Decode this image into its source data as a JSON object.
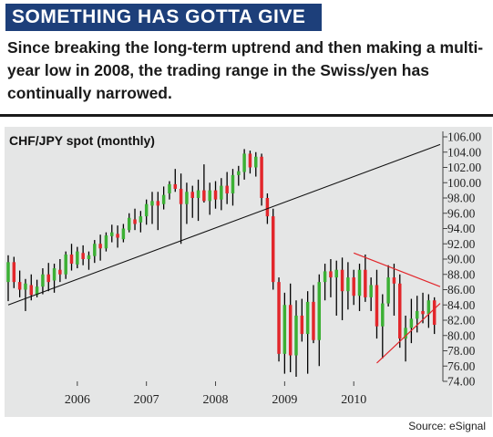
{
  "header": {
    "banner": "SOMETHING HAS GOTTA GIVE",
    "intro": "Since breaking the long-term uptrend and then making a multi-year low in 2008, the trading range in the Swiss/yen has continually narrowed."
  },
  "footer": {
    "source": "Source: eSignal"
  },
  "colors": {
    "banner": "#1d3f7a",
    "up": "#3bb034",
    "down": "#e2262b",
    "panel": "#e5e6e6",
    "triangle": "#e2262b"
  },
  "chart_data": {
    "type": "candlestick",
    "title": "CHF/JPY spot (monthly)",
    "ylim": [
      74,
      106
    ],
    "yticks": [
      "74.00",
      "76.00",
      "78.00",
      "80.00",
      "82.00",
      "84.00",
      "86.00",
      "88.00",
      "90.00",
      "92.00",
      "94.00",
      "96.00",
      "98.00",
      "100.00",
      "102.00",
      "104.00",
      "106.00"
    ],
    "xticks": [
      "2006",
      "2007",
      "2008",
      "2009",
      "2010"
    ],
    "xlim": [
      "2005-01",
      "2011-04"
    ],
    "candles": [
      {
        "t": "2005-01",
        "o": 87.0,
        "h": 90.5,
        "l": 84.5,
        "c": 89.6
      },
      {
        "t": "2005-02",
        "o": 89.6,
        "h": 90.3,
        "l": 86.2,
        "c": 87.0
      },
      {
        "t": "2005-03",
        "o": 87.0,
        "h": 88.5,
        "l": 85.0,
        "c": 86.0
      },
      {
        "t": "2005-04",
        "o": 86.0,
        "h": 87.4,
        "l": 83.2,
        "c": 86.8
      },
      {
        "t": "2005-05",
        "o": 86.6,
        "h": 88.0,
        "l": 84.6,
        "c": 85.3
      },
      {
        "t": "2005-06",
        "o": 85.3,
        "h": 87.3,
        "l": 85.0,
        "c": 86.4
      },
      {
        "t": "2005-07",
        "o": 86.4,
        "h": 88.8,
        "l": 85.4,
        "c": 88.0
      },
      {
        "t": "2005-08",
        "o": 88.0,
        "h": 89.5,
        "l": 85.8,
        "c": 87.0
      },
      {
        "t": "2005-09",
        "o": 87.2,
        "h": 89.4,
        "l": 85.6,
        "c": 88.8
      },
      {
        "t": "2005-10",
        "o": 88.6,
        "h": 90.0,
        "l": 87.0,
        "c": 88.0
      },
      {
        "t": "2005-11",
        "o": 88.0,
        "h": 91.0,
        "l": 87.4,
        "c": 90.6
      },
      {
        "t": "2005-12",
        "o": 90.6,
        "h": 92.0,
        "l": 88.5,
        "c": 89.4
      },
      {
        "t": "2006-01",
        "o": 89.3,
        "h": 91.6,
        "l": 88.8,
        "c": 91.0
      },
      {
        "t": "2006-02",
        "o": 90.8,
        "h": 91.8,
        "l": 89.2,
        "c": 90.0
      },
      {
        "t": "2006-03",
        "o": 90.0,
        "h": 91.0,
        "l": 88.6,
        "c": 90.5
      },
      {
        "t": "2006-04",
        "o": 90.4,
        "h": 92.5,
        "l": 89.5,
        "c": 92.0
      },
      {
        "t": "2006-05",
        "o": 92.0,
        "h": 93.2,
        "l": 89.8,
        "c": 91.4
      },
      {
        "t": "2006-06",
        "o": 91.4,
        "h": 93.5,
        "l": 91.0,
        "c": 93.1
      },
      {
        "t": "2006-07",
        "o": 93.0,
        "h": 94.5,
        "l": 92.2,
        "c": 93.5
      },
      {
        "t": "2006-08",
        "o": 93.3,
        "h": 94.4,
        "l": 91.5,
        "c": 92.8
      },
      {
        "t": "2006-09",
        "o": 92.6,
        "h": 94.6,
        "l": 92.2,
        "c": 94.0
      },
      {
        "t": "2006-10",
        "o": 93.8,
        "h": 96.0,
        "l": 93.5,
        "c": 95.4
      },
      {
        "t": "2006-11",
        "o": 95.2,
        "h": 96.6,
        "l": 93.8,
        "c": 94.6
      },
      {
        "t": "2006-12",
        "o": 94.8,
        "h": 96.3,
        "l": 93.5,
        "c": 95.6
      },
      {
        "t": "2007-01",
        "o": 95.6,
        "h": 97.8,
        "l": 94.5,
        "c": 97.2
      },
      {
        "t": "2007-02",
        "o": 97.0,
        "h": 98.8,
        "l": 94.6,
        "c": 97.6
      },
      {
        "t": "2007-03",
        "o": 97.6,
        "h": 98.8,
        "l": 93.8,
        "c": 97.0
      },
      {
        "t": "2007-04",
        "o": 97.2,
        "h": 99.5,
        "l": 96.5,
        "c": 98.4
      },
      {
        "t": "2007-05",
        "o": 98.6,
        "h": 100.2,
        "l": 97.8,
        "c": 99.8
      },
      {
        "t": "2007-06",
        "o": 99.8,
        "h": 101.8,
        "l": 98.8,
        "c": 99.2
      },
      {
        "t": "2007-07",
        "o": 99.2,
        "h": 101.2,
        "l": 92.0,
        "c": 97.2
      },
      {
        "t": "2007-08",
        "o": 97.2,
        "h": 100.0,
        "l": 94.6,
        "c": 98.8
      },
      {
        "t": "2007-09",
        "o": 98.8,
        "h": 99.6,
        "l": 95.4,
        "c": 98.0
      },
      {
        "t": "2007-10",
        "o": 98.0,
        "h": 100.4,
        "l": 95.0,
        "c": 99.0
      },
      {
        "t": "2007-11",
        "o": 99.0,
        "h": 102.4,
        "l": 97.4,
        "c": 97.6
      },
      {
        "t": "2007-12",
        "o": 97.6,
        "h": 100.0,
        "l": 95.8,
        "c": 99.0
      },
      {
        "t": "2008-01",
        "o": 99.0,
        "h": 100.2,
        "l": 96.6,
        "c": 97.8
      },
      {
        "t": "2008-02",
        "o": 97.8,
        "h": 100.6,
        "l": 96.4,
        "c": 99.6
      },
      {
        "t": "2008-03",
        "o": 99.6,
        "h": 101.4,
        "l": 97.2,
        "c": 98.6
      },
      {
        "t": "2008-04",
        "o": 98.6,
        "h": 101.8,
        "l": 97.0,
        "c": 101.0
      },
      {
        "t": "2008-05",
        "o": 101.0,
        "h": 102.2,
        "l": 99.6,
        "c": 101.5
      },
      {
        "t": "2008-06",
        "o": 101.4,
        "h": 104.4,
        "l": 100.4,
        "c": 103.8
      },
      {
        "t": "2008-07",
        "o": 103.8,
        "h": 104.2,
        "l": 101.2,
        "c": 102.0
      },
      {
        "t": "2008-08",
        "o": 102.0,
        "h": 104.0,
        "l": 100.8,
        "c": 103.4
      },
      {
        "t": "2008-09",
        "o": 103.4,
        "h": 103.8,
        "l": 97.0,
        "c": 98.0
      },
      {
        "t": "2008-10",
        "o": 98.0,
        "h": 98.6,
        "l": 94.6,
        "c": 95.6
      },
      {
        "t": "2008-11",
        "o": 95.6,
        "h": 96.6,
        "l": 86.0,
        "c": 87.0
      },
      {
        "t": "2008-12",
        "o": 87.0,
        "h": 87.6,
        "l": 76.6,
        "c": 77.6
      },
      {
        "t": "2009-01",
        "o": 77.6,
        "h": 85.6,
        "l": 75.0,
        "c": 84.0
      },
      {
        "t": "2009-02",
        "o": 84.0,
        "h": 86.8,
        "l": 75.2,
        "c": 77.4
      },
      {
        "t": "2009-03",
        "o": 77.4,
        "h": 84.6,
        "l": 74.6,
        "c": 82.6
      },
      {
        "t": "2009-04",
        "o": 82.6,
        "h": 84.8,
        "l": 79.2,
        "c": 80.2
      },
      {
        "t": "2009-05",
        "o": 80.2,
        "h": 85.8,
        "l": 75.0,
        "c": 84.4
      },
      {
        "t": "2009-06",
        "o": 84.4,
        "h": 86.6,
        "l": 79.0,
        "c": 79.4
      },
      {
        "t": "2009-07",
        "o": 79.4,
        "h": 88.0,
        "l": 76.0,
        "c": 87.0
      },
      {
        "t": "2009-08",
        "o": 87.0,
        "h": 89.4,
        "l": 84.6,
        "c": 88.4
      },
      {
        "t": "2009-09",
        "o": 88.4,
        "h": 90.0,
        "l": 85.0,
        "c": 87.6
      },
      {
        "t": "2009-10",
        "o": 87.6,
        "h": 89.8,
        "l": 82.6,
        "c": 88.6
      },
      {
        "t": "2009-11",
        "o": 88.6,
        "h": 90.2,
        "l": 82.0,
        "c": 85.8
      },
      {
        "t": "2009-12",
        "o": 85.8,
        "h": 89.6,
        "l": 83.4,
        "c": 87.6
      },
      {
        "t": "2010-01",
        "o": 87.6,
        "h": 88.6,
        "l": 84.0,
        "c": 85.2
      },
      {
        "t": "2010-02",
        "o": 85.2,
        "h": 89.4,
        "l": 83.2,
        "c": 88.6
      },
      {
        "t": "2010-03",
        "o": 88.6,
        "h": 90.6,
        "l": 84.4,
        "c": 85.0
      },
      {
        "t": "2010-04",
        "o": 85.0,
        "h": 87.6,
        "l": 83.2,
        "c": 86.6
      },
      {
        "t": "2010-05",
        "o": 86.6,
        "h": 88.6,
        "l": 79.6,
        "c": 81.2
      },
      {
        "t": "2010-06",
        "o": 81.2,
        "h": 85.4,
        "l": 77.0,
        "c": 84.2
      },
      {
        "t": "2010-07",
        "o": 84.2,
        "h": 89.2,
        "l": 83.8,
        "c": 87.6
      },
      {
        "t": "2010-08",
        "o": 87.6,
        "h": 89.4,
        "l": 82.6,
        "c": 86.8
      },
      {
        "t": "2010-09",
        "o": 86.8,
        "h": 88.0,
        "l": 78.4,
        "c": 79.6
      },
      {
        "t": "2010-10",
        "o": 79.6,
        "h": 82.6,
        "l": 76.6,
        "c": 81.0
      },
      {
        "t": "2010-11",
        "o": 81.0,
        "h": 84.8,
        "l": 79.0,
        "c": 82.2
      },
      {
        "t": "2010-12",
        "o": 82.2,
        "h": 85.2,
        "l": 80.4,
        "c": 83.2
      },
      {
        "t": "2011-01",
        "o": 83.2,
        "h": 85.6,
        "l": 81.6,
        "c": 82.8
      },
      {
        "t": "2011-02",
        "o": 82.8,
        "h": 85.4,
        "l": 81.0,
        "c": 84.6
      },
      {
        "t": "2011-03",
        "o": 84.6,
        "h": 85.0,
        "l": 80.2,
        "c": 81.4
      }
    ],
    "trendlines": [
      {
        "name": "long-term uptrend",
        "from": {
          "t": "2005-01",
          "v": 84.0
        },
        "to": {
          "t": "2011-04",
          "v": 105.0
        }
      },
      {
        "name": "upper triangle line",
        "from": {
          "t": "2010-01",
          "v": 90.8
        },
        "to": {
          "t": "2011-04",
          "v": 86.4
        }
      },
      {
        "name": "lower triangle line",
        "from": {
          "t": "2010-05",
          "v": 76.4
        },
        "to": {
          "t": "2011-04",
          "v": 84.2
        }
      }
    ]
  }
}
